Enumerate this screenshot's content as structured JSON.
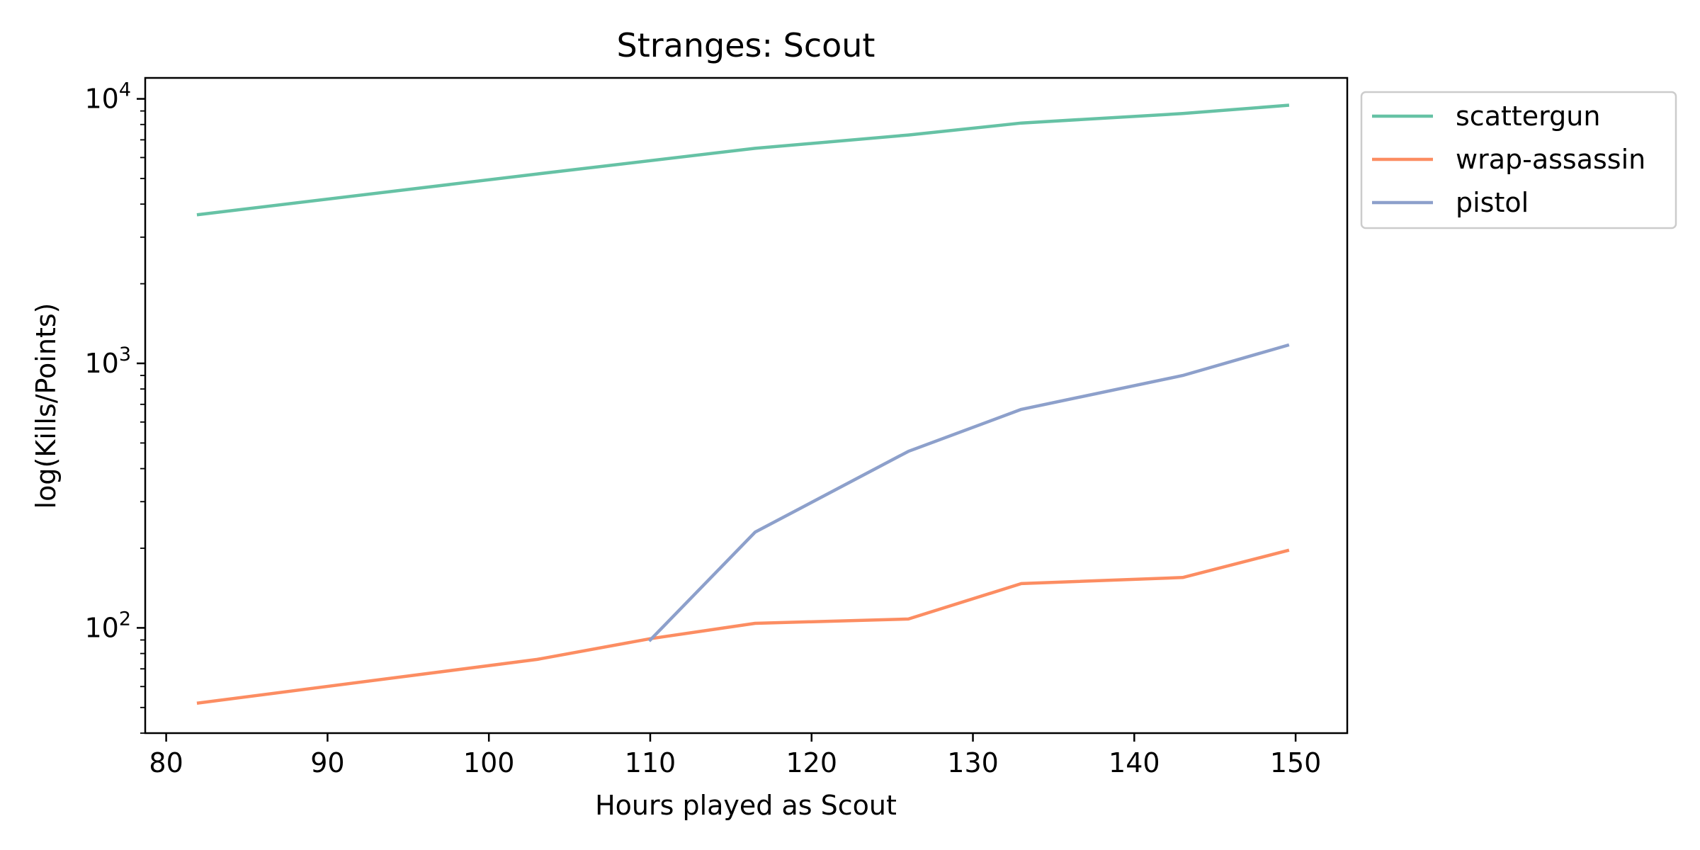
{
  "chart_data": {
    "type": "line",
    "title": "Stranges: Scout",
    "xlabel": "Hours played as Scout",
    "ylabel": "log(Kills/Points)",
    "xlim": [
      78.7,
      153.2
    ],
    "ylim": [
      40,
      12000
    ],
    "yscale": "log",
    "x_ticks": [
      80,
      90,
      100,
      110,
      120,
      130,
      140,
      150
    ],
    "y_ticks": [
      {
        "value": 100,
        "base": "10",
        "exponent": "2"
      },
      {
        "value": 1000,
        "base": "10",
        "exponent": "3"
      },
      {
        "value": 10000,
        "base": "10",
        "exponent": "4"
      }
    ],
    "grid": false,
    "legend_position": "outside-top-right",
    "series": [
      {
        "name": "scattergun",
        "color": "#66c2a5",
        "x": [
          82,
          103,
          116.5,
          126,
          133,
          143,
          149.5
        ],
        "values": [
          3650,
          5200,
          6500,
          7300,
          8100,
          8800,
          9450
        ]
      },
      {
        "name": "wrap-assassin",
        "color": "#fc8d62",
        "x": [
          82,
          103,
          110,
          116.5,
          126,
          133,
          143,
          149.5
        ],
        "values": [
          52,
          76,
          91,
          104,
          108,
          147,
          155,
          196
        ]
      },
      {
        "name": "pistol",
        "color": "#8da0cb",
        "x": [
          110,
          116.5,
          126,
          133,
          143,
          149.5
        ],
        "values": [
          90,
          230,
          465,
          670,
          900,
          1170
        ]
      }
    ]
  }
}
